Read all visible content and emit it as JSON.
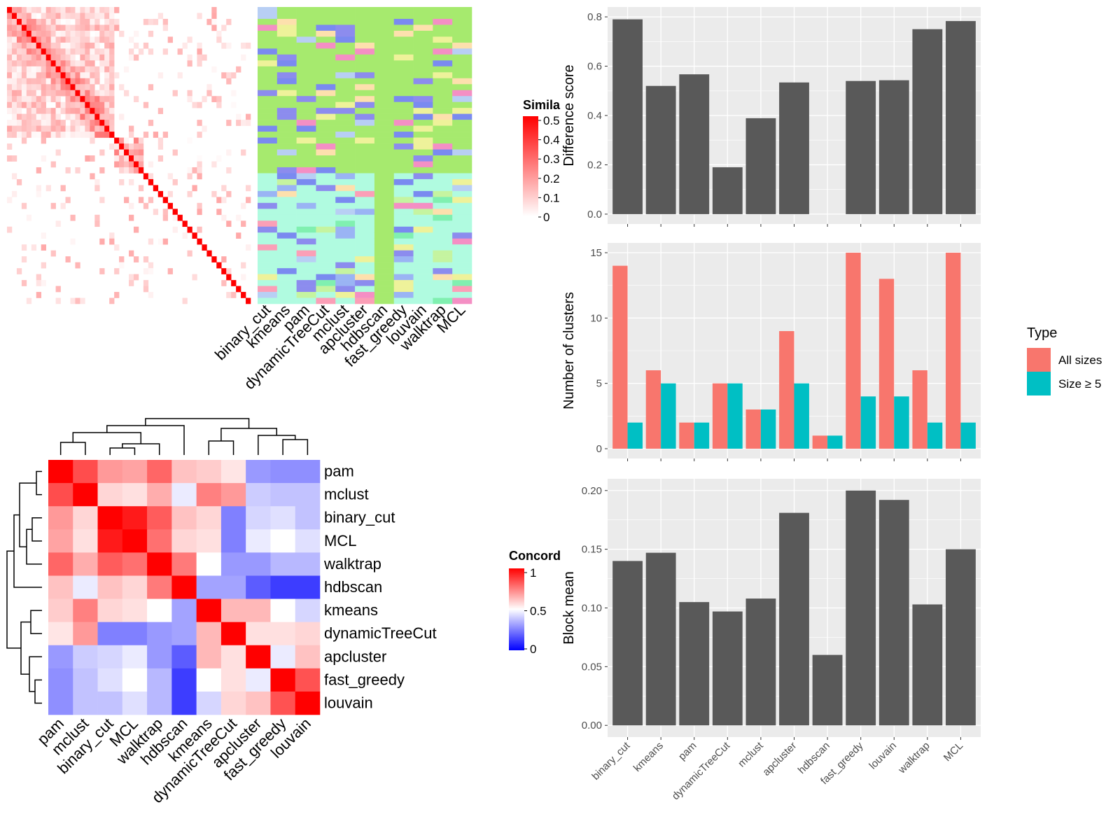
{
  "colors": {
    "panel_bg": "#ebebeb",
    "grid": "#ffffff",
    "bar": "#595959",
    "all_sizes": "#f8766d",
    "size5": "#00bfc4",
    "sim_high": "#ff0000",
    "sim_low": "#ffffff",
    "conc_high": "#ff0000",
    "conc_mid": "#ffffff",
    "conc_low": "#0000ff",
    "cluster_palette": [
      "#a6ea6e",
      "#b0fbe0",
      "#8c8cee",
      "#f48fc4",
      "#fde0ad",
      "#b8cff4",
      "#eef29a",
      "#7a8af0",
      "#fb9fb7",
      "#c5f4a0",
      "#80f0b0",
      "#9ab4f4",
      "#6b85f5"
    ]
  },
  "similarity_heatmap": {
    "legend_title": "Simila",
    "legend_ticks": [
      "0.5",
      "0.4",
      "0.3",
      "0.2",
      "0.1",
      "0"
    ],
    "column_labels": [
      "binary_cut",
      "kmeans",
      "pam",
      "dynamicTreeCut",
      "mclust",
      "apcluster",
      "hdbscan",
      "fast_greedy",
      "louvain",
      "walktrap",
      "MCL"
    ]
  },
  "concordance_heatmap": {
    "legend_title": "Concord",
    "legend_ticks": [
      "1",
      "0.5",
      "0"
    ],
    "row_labels": [
      "pam",
      "mclust",
      "binary_cut",
      "MCL",
      "walktrap",
      "hdbscan",
      "kmeans",
      "dynamicTreeCut",
      "apcluster",
      "fast_greedy",
      "louvain"
    ],
    "col_labels": [
      "pam",
      "mclust",
      "binary_cut",
      "MCL",
      "walktrap",
      "hdbscan",
      "kmeans",
      "dynamicTreeCut",
      "apcluster",
      "fast_greedy",
      "louvain"
    ],
    "values": [
      [
        1.0,
        0.85,
        0.7,
        0.68,
        0.8,
        0.62,
        0.6,
        0.55,
        0.3,
        0.28,
        0.28
      ],
      [
        0.85,
        1.0,
        0.58,
        0.56,
        0.66,
        0.46,
        0.75,
        0.7,
        0.4,
        0.38,
        0.38
      ],
      [
        0.7,
        0.58,
        1.0,
        0.95,
        0.82,
        0.62,
        0.58,
        0.25,
        0.42,
        0.44,
        0.38
      ],
      [
        0.68,
        0.56,
        0.95,
        1.0,
        0.78,
        0.58,
        0.56,
        0.25,
        0.46,
        0.5,
        0.44
      ],
      [
        0.8,
        0.66,
        0.82,
        0.78,
        1.0,
        0.76,
        0.5,
        0.3,
        0.3,
        0.36,
        0.36
      ],
      [
        0.62,
        0.46,
        0.62,
        0.58,
        0.76,
        1.0,
        0.32,
        0.32,
        0.18,
        0.12,
        0.12
      ],
      [
        0.6,
        0.75,
        0.58,
        0.56,
        0.5,
        0.32,
        1.0,
        0.64,
        0.64,
        0.5,
        0.42
      ],
      [
        0.55,
        0.7,
        0.25,
        0.25,
        0.3,
        0.32,
        0.64,
        1.0,
        0.56,
        0.56,
        0.58
      ],
      [
        0.3,
        0.4,
        0.42,
        0.46,
        0.3,
        0.18,
        0.64,
        0.56,
        1.0,
        0.46,
        0.62
      ],
      [
        0.28,
        0.38,
        0.44,
        0.5,
        0.36,
        0.12,
        0.5,
        0.56,
        0.46,
        1.0,
        0.84
      ],
      [
        0.28,
        0.38,
        0.38,
        0.44,
        0.36,
        0.12,
        0.42,
        0.58,
        0.62,
        0.84,
        1.0
      ]
    ]
  },
  "chart_data": [
    {
      "type": "bar",
      "categories": [
        "binary_cut",
        "kmeans",
        "pam",
        "dynamicTreeCut",
        "mclust",
        "apcluster",
        "hdbscan",
        "fast_greedy",
        "louvain",
        "walktrap",
        "MCL"
      ],
      "values": [
        0.79,
        0.52,
        0.567,
        0.19,
        0.389,
        0.534,
        null,
        0.54,
        0.543,
        0.75,
        0.783
      ],
      "xlabel": "",
      "ylabel": "Difference score",
      "ylim": [
        0,
        0.8
      ],
      "yticks": [
        "0.0",
        "0.2",
        "0.4",
        "0.6",
        "0.8"
      ],
      "grid": true
    },
    {
      "type": "bar",
      "categories": [
        "binary_cut",
        "kmeans",
        "pam",
        "dynamicTreeCut",
        "mclust",
        "apcluster",
        "hdbscan",
        "fast_greedy",
        "louvain",
        "walktrap",
        "MCL"
      ],
      "series": [
        {
          "name": "All sizes",
          "values": [
            14,
            6,
            2,
            5,
            3,
            9,
            1,
            15,
            13,
            6,
            15
          ]
        },
        {
          "name": "Size ≥ 5",
          "values": [
            2,
            5,
            2,
            5,
            3,
            5,
            1,
            4,
            4,
            2,
            2
          ]
        }
      ],
      "xlabel": "",
      "ylabel": "Number of clusters",
      "ylim": [
        0,
        15
      ],
      "yticks": [
        "0",
        "5",
        "10",
        "15"
      ],
      "legend_title": "Type",
      "legend_position": "right",
      "grid": true
    },
    {
      "type": "bar",
      "categories": [
        "binary_cut",
        "kmeans",
        "pam",
        "dynamicTreeCut",
        "mclust",
        "apcluster",
        "hdbscan",
        "fast_greedy",
        "louvain",
        "walktrap",
        "MCL"
      ],
      "values": [
        0.14,
        0.147,
        0.105,
        0.097,
        0.108,
        0.181,
        0.06,
        0.2,
        0.192,
        0.103,
        0.15
      ],
      "xlabel": "",
      "ylabel": "Block mean",
      "ylim": [
        0,
        0.2
      ],
      "yticks": [
        "0.00",
        "0.05",
        "0.10",
        "0.15",
        "0.20"
      ],
      "grid": true
    }
  ]
}
